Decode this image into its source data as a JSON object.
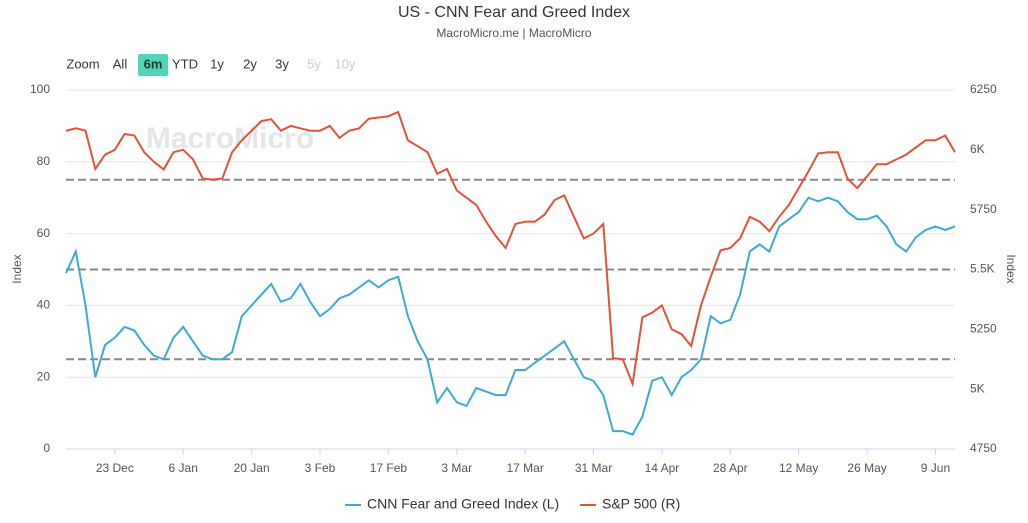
{
  "chart_data": {
    "type": "line",
    "title": "US - CNN Fear and Greed Index",
    "subtitle": "MacroMicro.me | MacroMicro",
    "watermark": "MacroMicro",
    "categories": [
      "13 Dec",
      "15 Dec",
      "17 Dec",
      "19 Dec",
      "21 Dec",
      "23 Dec",
      "25 Dec",
      "27 Dec",
      "29 Dec",
      "31 Dec",
      "2 Jan",
      "4 Jan",
      "6 Jan",
      "8 Jan",
      "10 Jan",
      "12 Jan",
      "14 Jan",
      "16 Jan",
      "18 Jan",
      "20 Jan",
      "22 Jan",
      "24 Jan",
      "26 Jan",
      "28 Jan",
      "30 Jan",
      "1 Feb",
      "3 Feb",
      "5 Feb",
      "7 Feb",
      "9 Feb",
      "11 Feb",
      "13 Feb",
      "15 Feb",
      "17 Feb",
      "19 Feb",
      "21 Feb",
      "23 Feb",
      "25 Feb",
      "27 Feb",
      "1 Mar",
      "3 Mar",
      "5 Mar",
      "7 Mar",
      "9 Mar",
      "11 Mar",
      "13 Mar",
      "15 Mar",
      "17 Mar",
      "19 Mar",
      "21 Mar",
      "23 Mar",
      "25 Mar",
      "27 Mar",
      "29 Mar",
      "31 Mar",
      "2 Apr",
      "4 Apr",
      "6 Apr",
      "8 Apr",
      "10 Apr",
      "12 Apr",
      "14 Apr",
      "16 Apr",
      "18 Apr",
      "20 Apr",
      "22 Apr",
      "24 Apr",
      "26 Apr",
      "28 Apr",
      "30 Apr",
      "2 May",
      "4 May",
      "6 May",
      "8 May",
      "10 May",
      "12 May",
      "14 May",
      "16 May",
      "18 May",
      "20 May",
      "22 May",
      "24 May",
      "26 May",
      "28 May",
      "30 May",
      "1 Jun",
      "3 Jun",
      "5 Jun",
      "7 Jun",
      "9 Jun",
      "11 Jun",
      "13 Jun"
    ],
    "xticks": [
      "23 Dec",
      "6 Jan",
      "20 Jan",
      "3 Feb",
      "17 Feb",
      "3 Mar",
      "17 Mar",
      "31 Mar",
      "14 Apr",
      "28 Apr",
      "12 May",
      "26 May",
      "9 Jun"
    ],
    "series": [
      {
        "name": "CNN Fear and Greed Index (L)",
        "color": "#3fa9d1",
        "axis": "y",
        "values": [
          49,
          55,
          40,
          20,
          29,
          31,
          34,
          33,
          29,
          26,
          25,
          31,
          34,
          30,
          26,
          25,
          25,
          27,
          37,
          40,
          43,
          46,
          41,
          42,
          46,
          41,
          37,
          39,
          42,
          43,
          45,
          47,
          45,
          47,
          48,
          37,
          30,
          25,
          13,
          17,
          13,
          12,
          17,
          16,
          15,
          15,
          22,
          22,
          24,
          26,
          28,
          30,
          25,
          20,
          19,
          15,
          5,
          5,
          4,
          9,
          19,
          20,
          15,
          20,
          22,
          25,
          37,
          35,
          36,
          43,
          55,
          57,
          55,
          62,
          64,
          66,
          70,
          69,
          70,
          69,
          66,
          64,
          64,
          65,
          62,
          57,
          55,
          59,
          61,
          62,
          61,
          62
        ]
      },
      {
        "name": "S&P 500 (R)",
        "color": "#e0533a",
        "axis": "y2",
        "values": [
          6079,
          6090,
          6080,
          5920,
          5980,
          6000,
          6066,
          6060,
          5990,
          5950,
          5918,
          5990,
          6000,
          5960,
          5880,
          5876,
          5880,
          5990,
          6040,
          6080,
          6120,
          6128,
          6080,
          6100,
          6090,
          6080,
          6080,
          6100,
          6050,
          6080,
          6090,
          6130,
          6135,
          6140,
          6158,
          6040,
          6015,
          5990,
          5900,
          5920,
          5830,
          5800,
          5770,
          5700,
          5640,
          5590,
          5690,
          5700,
          5700,
          5730,
          5790,
          5810,
          5720,
          5630,
          5650,
          5690,
          5130,
          5125,
          5022,
          5300,
          5320,
          5350,
          5250,
          5230,
          5180,
          5350,
          5470,
          5580,
          5590,
          5630,
          5720,
          5700,
          5660,
          5720,
          5770,
          5840,
          5910,
          5985,
          5990,
          5990,
          5880,
          5840,
          5890,
          5940,
          5940,
          5960,
          5980,
          6010,
          6040,
          6040,
          6060,
          5990
        ]
      }
    ],
    "ylabel": "Index",
    "y2label": "Index",
    "ylim": [
      0,
      100
    ],
    "yticks": [
      0,
      20,
      40,
      60,
      80,
      100
    ],
    "y2lim": [
      4750,
      6250
    ],
    "y2ticks": [
      4750,
      {
        "value": 5000,
        "label": "5K"
      },
      5250,
      {
        "value": 5500,
        "label": "5.5K"
      },
      5750,
      {
        "value": 6000,
        "label": "6K"
      },
      6250
    ],
    "reference_lines": [
      25,
      50,
      75
    ],
    "grid": true
  },
  "range_selector": {
    "label": "Zoom",
    "buttons": [
      {
        "text": "All",
        "state": "normal"
      },
      {
        "text": "6m",
        "state": "selected"
      },
      {
        "text": "YTD",
        "state": "normal"
      },
      {
        "text": "1y",
        "state": "normal"
      },
      {
        "text": "2y",
        "state": "normal"
      },
      {
        "text": "3y",
        "state": "normal"
      },
      {
        "text": "5y",
        "state": "disabled"
      },
      {
        "text": "10y",
        "state": "disabled"
      }
    ]
  }
}
